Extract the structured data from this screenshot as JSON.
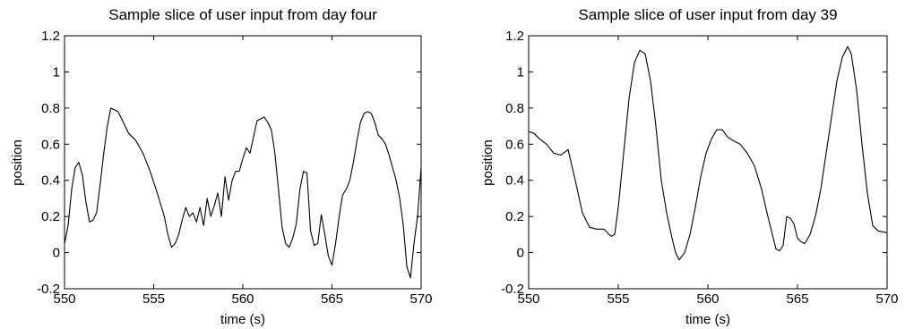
{
  "chart_data": [
    {
      "type": "line",
      "title": "Sample slice of user input from day four",
      "xlabel": "time (s)",
      "ylabel": "position",
      "xlim": [
        550,
        570
      ],
      "ylim": [
        -0.2,
        1.2
      ],
      "xticks": [
        550,
        555,
        560,
        565,
        570
      ],
      "yticks": [
        -0.2,
        0,
        0.2,
        0.4,
        0.6,
        0.8,
        1,
        1.2
      ],
      "xtick_labels": [
        "550",
        "555",
        "560",
        "565",
        "570"
      ],
      "ytick_labels": [
        "-0.2",
        "0",
        "0.2",
        "0.4",
        "0.6",
        "0.8",
        "1",
        "1.2"
      ],
      "grid": false,
      "series": [
        {
          "color": "#000000",
          "x": [
            550.0,
            550.2,
            550.4,
            550.6,
            550.8,
            551.0,
            551.2,
            551.4,
            551.6,
            551.8,
            552.0,
            552.2,
            552.4,
            552.6,
            552.8,
            553.0,
            553.3,
            553.6,
            554.0,
            554.4,
            554.8,
            555.2,
            555.6,
            555.8,
            556.0,
            556.2,
            556.4,
            556.6,
            556.8,
            557.0,
            557.2,
            557.4,
            557.6,
            557.8,
            558.0,
            558.2,
            558.4,
            558.6,
            558.8,
            559.0,
            559.2,
            559.4,
            559.6,
            559.8,
            560.0,
            560.2,
            560.4,
            560.6,
            560.8,
            561.0,
            561.2,
            561.4,
            561.6,
            561.8,
            562.0,
            562.2,
            562.4,
            562.6,
            562.8,
            563.0,
            563.2,
            563.4,
            563.6,
            563.8,
            564.0,
            564.2,
            564.4,
            564.6,
            564.8,
            565.0,
            565.2,
            565.4,
            565.6,
            565.8,
            566.0,
            566.2,
            566.4,
            566.6,
            566.8,
            567.0,
            567.2,
            567.4,
            567.6,
            567.8,
            568.0,
            568.2,
            568.4,
            568.6,
            568.8,
            569.0,
            569.2,
            569.4,
            569.6,
            569.8,
            570.0
          ],
          "y": [
            0.05,
            0.15,
            0.35,
            0.47,
            0.5,
            0.43,
            0.28,
            0.17,
            0.18,
            0.22,
            0.38,
            0.55,
            0.7,
            0.8,
            0.79,
            0.78,
            0.72,
            0.66,
            0.62,
            0.55,
            0.45,
            0.33,
            0.2,
            0.1,
            0.03,
            0.05,
            0.1,
            0.18,
            0.25,
            0.2,
            0.22,
            0.17,
            0.25,
            0.15,
            0.3,
            0.2,
            0.26,
            0.33,
            0.2,
            0.42,
            0.29,
            0.4,
            0.45,
            0.45,
            0.52,
            0.58,
            0.55,
            0.64,
            0.73,
            0.74,
            0.75,
            0.72,
            0.68,
            0.55,
            0.35,
            0.14,
            0.05,
            0.03,
            0.08,
            0.16,
            0.35,
            0.45,
            0.44,
            0.12,
            0.04,
            0.05,
            0.21,
            0.1,
            -0.02,
            -0.07,
            0.05,
            0.2,
            0.32,
            0.35,
            0.4,
            0.5,
            0.62,
            0.72,
            0.77,
            0.78,
            0.77,
            0.72,
            0.65,
            0.63,
            0.6,
            0.54,
            0.47,
            0.4,
            0.3,
            0.15,
            -0.08,
            -0.14,
            0.05,
            0.2,
            0.47
          ]
        }
      ]
    },
    {
      "type": "line",
      "title": "Sample slice of user input from day 39",
      "xlabel": "time (s)",
      "ylabel": "position",
      "xlim": [
        550,
        570
      ],
      "ylim": [
        -0.2,
        1.2
      ],
      "xticks": [
        550,
        555,
        560,
        565,
        570
      ],
      "yticks": [
        -0.2,
        0,
        0.2,
        0.4,
        0.6,
        0.8,
        1,
        1.2
      ],
      "xtick_labels": [
        "550",
        "555",
        "560",
        "565",
        "570"
      ],
      "ytick_labels": [
        "-0.2",
        "0",
        "0.2",
        "0.4",
        "0.6",
        "0.8",
        "1",
        "1.2"
      ],
      "grid": false,
      "series": [
        {
          "color": "#000000",
          "x": [
            550.0,
            550.3,
            550.6,
            551.0,
            551.4,
            551.8,
            552.2,
            552.6,
            553.0,
            553.4,
            553.8,
            554.2,
            554.6,
            554.8,
            555.0,
            555.3,
            555.6,
            555.9,
            556.2,
            556.5,
            556.8,
            557.1,
            557.4,
            557.7,
            558.0,
            558.2,
            558.4,
            558.7,
            559.0,
            559.3,
            559.6,
            559.9,
            560.2,
            560.5,
            560.8,
            561.1,
            561.4,
            561.8,
            562.2,
            562.6,
            563.0,
            563.3,
            563.6,
            563.8,
            564.0,
            564.2,
            564.4,
            564.6,
            564.8,
            565.0,
            565.2,
            565.4,
            565.7,
            566.0,
            566.3,
            566.6,
            566.9,
            567.2,
            567.5,
            567.8,
            568.0,
            568.3,
            568.6,
            568.9,
            569.2,
            569.5,
            570.0
          ],
          "y": [
            0.67,
            0.66,
            0.63,
            0.6,
            0.55,
            0.54,
            0.57,
            0.4,
            0.22,
            0.14,
            0.13,
            0.13,
            0.09,
            0.1,
            0.25,
            0.55,
            0.85,
            1.05,
            1.12,
            1.1,
            0.95,
            0.7,
            0.4,
            0.22,
            0.08,
            0.0,
            -0.04,
            0.0,
            0.1,
            0.25,
            0.42,
            0.55,
            0.63,
            0.68,
            0.68,
            0.64,
            0.62,
            0.6,
            0.55,
            0.48,
            0.35,
            0.22,
            0.1,
            0.02,
            0.01,
            0.04,
            0.2,
            0.19,
            0.16,
            0.08,
            0.06,
            0.05,
            0.1,
            0.2,
            0.35,
            0.55,
            0.75,
            0.95,
            1.08,
            1.14,
            1.1,
            0.9,
            0.6,
            0.33,
            0.15,
            0.12,
            0.11
          ]
        }
      ]
    }
  ]
}
